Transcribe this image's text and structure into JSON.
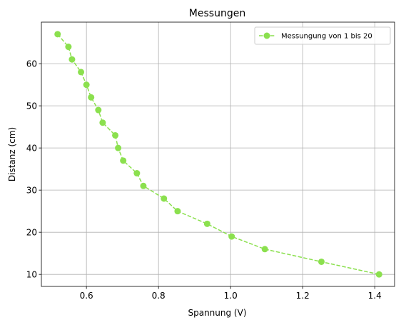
{
  "chart_data": {
    "type": "line",
    "title": "Messungen",
    "xlabel": "Spannung (V)",
    "ylabel": "Distanz (cm)",
    "xlim": [
      0.475,
      1.455
    ],
    "ylim": [
      7.15,
      69.85
    ],
    "xticks": [
      0.6,
      0.8,
      1.0,
      1.2,
      1.4
    ],
    "xtick_labels": [
      "0.6",
      "0.8",
      "1.0",
      "1.2",
      "1.4"
    ],
    "yticks": [
      10,
      20,
      30,
      40,
      50,
      60
    ],
    "ytick_labels": [
      "10",
      "20",
      "30",
      "40",
      "50",
      "60"
    ],
    "grid": true,
    "legend_position": "top-right",
    "series": [
      {
        "name": "Messungung von 1 bis 20",
        "color": "#8be04e",
        "line_style": "dashed",
        "marker": "circle",
        "x": [
          0.52,
          0.55,
          0.56,
          0.585,
          0.6,
          0.613,
          0.633,
          0.645,
          0.68,
          0.688,
          0.702,
          0.74,
          0.758,
          0.815,
          0.853,
          0.935,
          1.003,
          1.095,
          1.252,
          1.412
        ],
        "y": [
          67,
          64,
          61,
          58,
          55,
          52,
          49,
          46,
          43,
          40,
          37,
          34,
          31,
          28,
          25,
          22,
          19,
          16,
          13,
          10
        ]
      }
    ]
  }
}
